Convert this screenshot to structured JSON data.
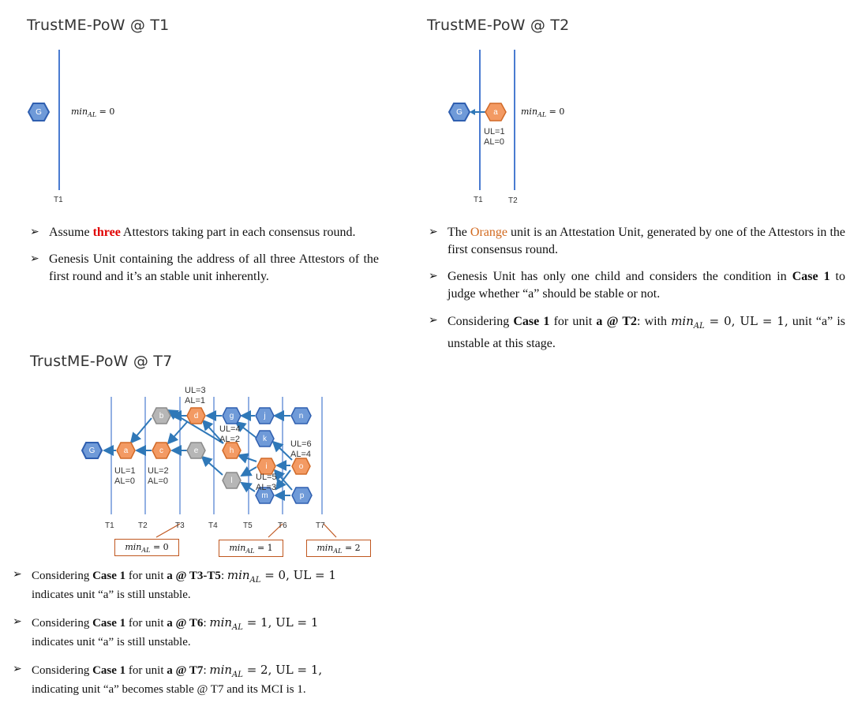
{
  "colors": {
    "blue": "#6f9ad8",
    "orange": "#f39a63",
    "gray": "#b6b6b6",
    "accent_red": "#e00000",
    "orange_text": "#d2691e"
  },
  "panel_t1": {
    "title": "TrustME-PoW @ T1",
    "genesis": "G",
    "min_label": "min",
    "min_sub": "AL",
    "min_val": " = 0",
    "tick_t1": "T1"
  },
  "panel_t2": {
    "title": "TrustME-PoW @ T2",
    "genesis": "G",
    "unit_a": "a",
    "min_label": "min",
    "min_sub": "AL",
    "min_val": " = 0",
    "ul": "UL=1",
    "al": "AL=0",
    "tick_t1": "T1",
    "tick_t2": "T2"
  },
  "panel_t7": {
    "title": "TrustME-PoW @ T7",
    "nodes": {
      "G": "G",
      "a": "a",
      "b": "b",
      "c": "c",
      "d": "d",
      "e": "e",
      "g": "g",
      "h": "h",
      "i": "i",
      "j": "j",
      "k": "k",
      "l": "l",
      "m": "m",
      "n": "n",
      "o": "o",
      "p": "p"
    },
    "labels": {
      "a_ul": "UL=1",
      "a_al": "AL=0",
      "c_ul": "UL=2",
      "c_al": "AL=0",
      "d_ul": "UL=3",
      "d_al": "AL=1",
      "h_ul": "UL=4",
      "h_al": "AL=2",
      "i_ul": "UL=5",
      "i_al": "AL=3",
      "o_ul": "UL=6",
      "o_al": "AL=4"
    },
    "ticks": [
      "T1",
      "T2",
      "T3",
      "T4",
      "T5",
      "T6",
      "T7"
    ],
    "box_min": "min",
    "box_sub": "AL",
    "box1_val": " = 0",
    "box2_val": " = 1",
    "box3_val": " = 2"
  },
  "bullets_left_top": {
    "b1_pre": "Assume ",
    "b1_red": "three",
    "b1_post": " Attestors taking part in each consensus round.",
    "b2": "Genesis Unit containing the address of all three Attestors of the first round and it’s an stable unit inherently."
  },
  "bullets_right_top": {
    "b1_pre": "The ",
    "b1_orange": "Orange",
    "b1_post": " unit is an Attestation Unit, generated by one of the Attestors in the first consensus round.",
    "b2_pre": "Genesis Unit has only one child and considers the condition in ",
    "b2_bold": "Case 1",
    "b2_post": " to judge whether “a” should be stable or not.",
    "b3_pre": "Considering ",
    "b3_bold1": "Case 1",
    "b3_mid": " for unit ",
    "b3_bold2": "a @ T2",
    "b3_after": ": with ",
    "b3_math": "min",
    "b3_sub": "AL",
    "b3_eq": " = 0, UL = 1,",
    "b3_end": " unit “a” is unstable at this stage."
  },
  "bullets_bottom": {
    "b1_pre": "Considering ",
    "b1_case": "Case 1",
    "b1_mid": " for unit ",
    "b1_unit": "a @ T3-T5",
    "b1_colon": ": ",
    "b1_math": "min",
    "b1_sub": "AL",
    "b1_eq": " = 0, UL = 1",
    "b1_end": "indicates unit “a” is still unstable.",
    "b2_pre": "Considering ",
    "b2_case": "Case 1",
    "b2_mid": " for unit ",
    "b2_unit": "a @ T6",
    "b2_colon": ": ",
    "b2_math": "min",
    "b2_sub": "AL",
    "b2_eq": " = 1, UL = 1",
    "b2_end": "indicates unit “a” is still unstable.",
    "b3_pre": "Considering ",
    "b3_case": "Case 1",
    "b3_mid": " for unit ",
    "b3_unit": "a @ T7",
    "b3_colon": ": ",
    "b3_math": "min",
    "b3_sub": "AL",
    "b3_eq": " = 2, UL = 1,",
    "b3_end": "indicating unit “a” becomes stable @ T7 and its MCI is 1."
  }
}
